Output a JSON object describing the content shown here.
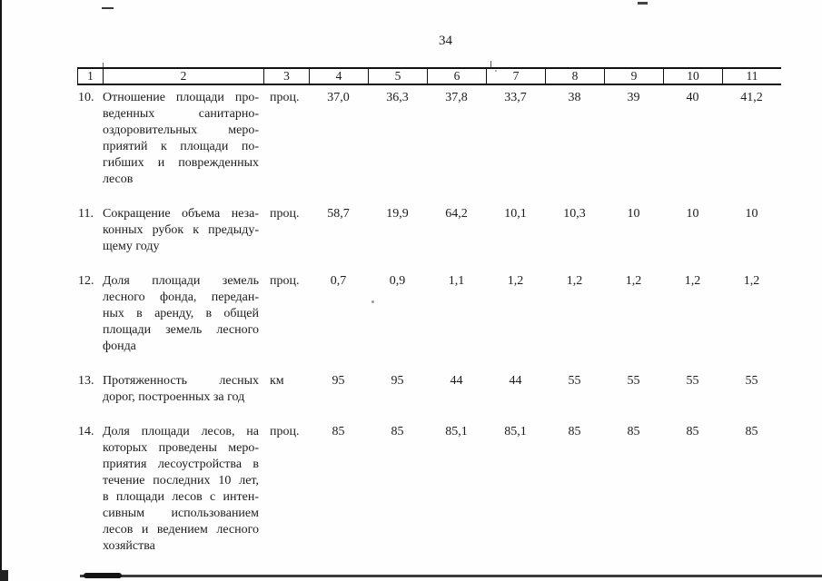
{
  "page": {
    "number": "34"
  },
  "colors": {
    "ink": "#1c1c1c",
    "paper": "#ffffff"
  },
  "table": {
    "header": [
      "1",
      "2",
      "3",
      "4",
      "5",
      "6",
      "7",
      "8",
      "9",
      "10",
      "11"
    ],
    "rows": [
      {
        "num": "10.",
        "description_lines": [
          "Отношение площади про-",
          "веденных санитарно-",
          "оздоровительных меро-",
          "приятий к площади по-",
          "гибших и поврежденных",
          "лесов"
        ],
        "unit": "проц.",
        "values": [
          "37,0",
          "36,3",
          "37,8",
          "33,7",
          "38",
          "39",
          "40",
          "41,2"
        ]
      },
      {
        "num": "11.",
        "description_lines": [
          "Сокращение объема неза-",
          "конных рубок к предыду-",
          "щему году"
        ],
        "unit": "проц.",
        "values": [
          "58,7",
          "19,9",
          "64,2",
          "10,1",
          "10,3",
          "10",
          "10",
          "10"
        ]
      },
      {
        "num": "12.",
        "description_lines": [
          "Доля площади земель",
          "лесного фонда, передан-",
          "ных в аренду, в общей",
          "площади земель лесного",
          "фонда"
        ],
        "unit": "проц.",
        "values": [
          "0,7",
          "0,9",
          "1,1",
          "1,2",
          "1,2",
          "1,2",
          "1,2",
          "1,2"
        ]
      },
      {
        "num": "13.",
        "description_lines": [
          "Протяженность лесных",
          "дорог, построенных за год"
        ],
        "unit": "км",
        "values": [
          "95",
          "95",
          "44",
          "44",
          "55",
          "55",
          "55",
          "55"
        ]
      },
      {
        "num": "14.",
        "description_lines": [
          "Доля площади лесов, на",
          "которых проведены меро-",
          "приятия лесоустройства в",
          "течение последних 10 лет,",
          "в площади лесов с интен-",
          "сивным использованием",
          "лесов и ведением лесного",
          "хозяйства"
        ],
        "unit": "проц.",
        "values": [
          "85",
          "85",
          "85,1",
          "85,1",
          "85",
          "85",
          "85",
          "85"
        ]
      }
    ]
  }
}
